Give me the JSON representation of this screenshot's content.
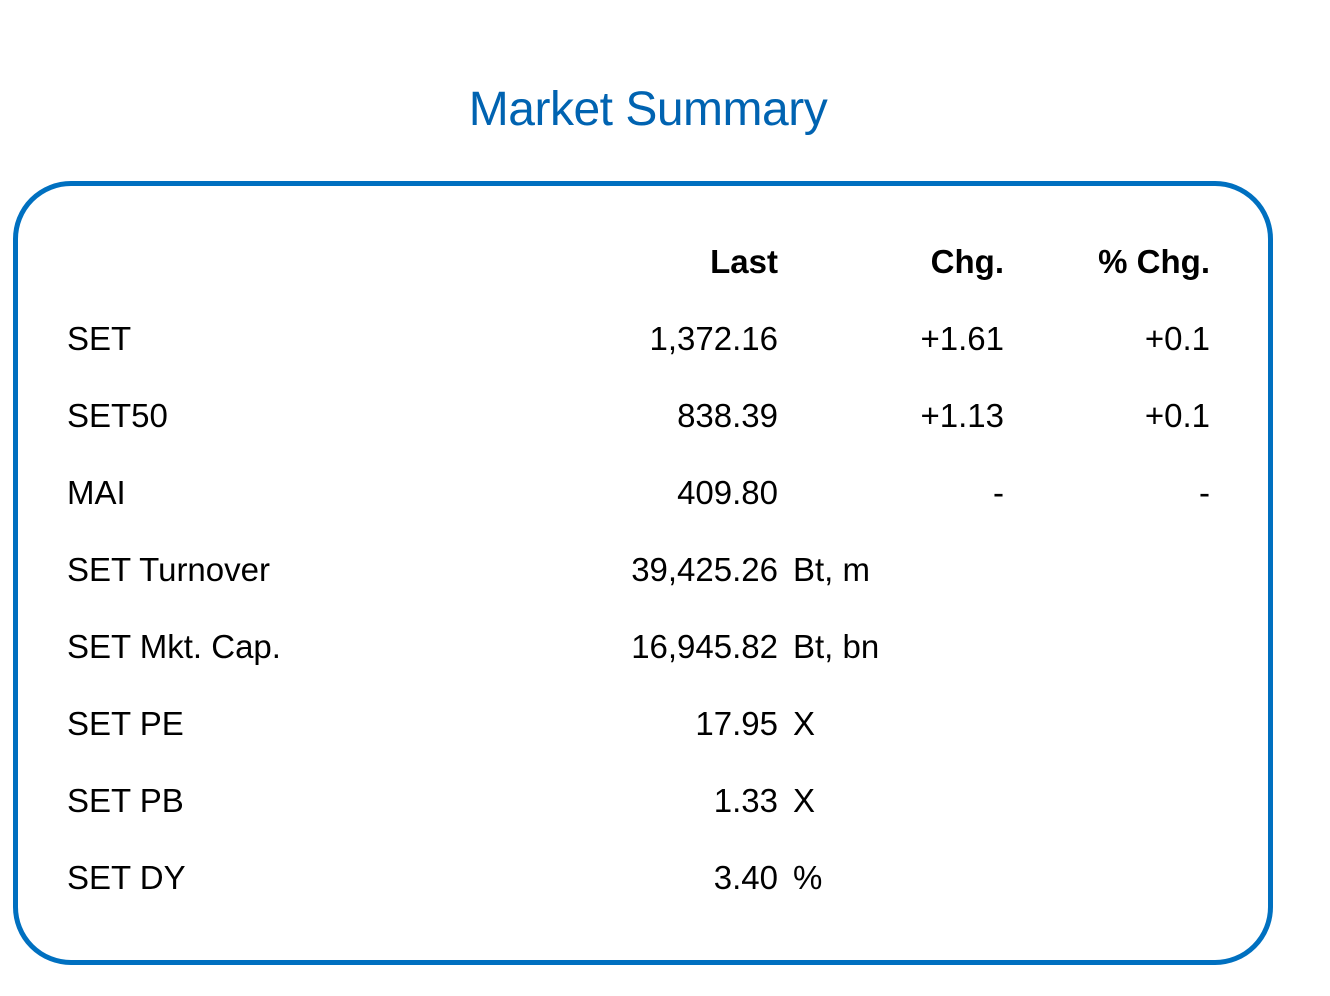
{
  "title": "Market Summary",
  "colors": {
    "title": "#0063b1",
    "border": "#0070c0",
    "text": "#000000"
  },
  "headers": {
    "last": "Last",
    "chg": "Chg.",
    "pct_chg": "% Chg."
  },
  "rows": [
    {
      "name": "SET",
      "last": "1,372.16",
      "unit": "",
      "chg": "+1.61",
      "pct": "+0.1"
    },
    {
      "name": "SET50",
      "last": "838.39",
      "unit": "",
      "chg": "+1.13",
      "pct": "+0.1"
    },
    {
      "name": "MAI",
      "last": "409.80",
      "unit": "",
      "chg": "-",
      "pct": "-"
    },
    {
      "name": "SET Turnover",
      "last": "39,425.26",
      "unit": "Bt, m",
      "chg": "",
      "pct": ""
    },
    {
      "name": "SET Mkt. Cap.",
      "last": "16,945.82",
      "unit": "Bt, bn",
      "chg": "",
      "pct": ""
    },
    {
      "name": "SET PE",
      "last": "17.95",
      "unit": "X",
      "chg": "",
      "pct": ""
    },
    {
      "name": "SET PB",
      "last": "1.33",
      "unit": "X",
      "chg": "",
      "pct": ""
    },
    {
      "name": "SET DY",
      "last": "3.40",
      "unit": "%",
      "chg": "",
      "pct": ""
    }
  ]
}
